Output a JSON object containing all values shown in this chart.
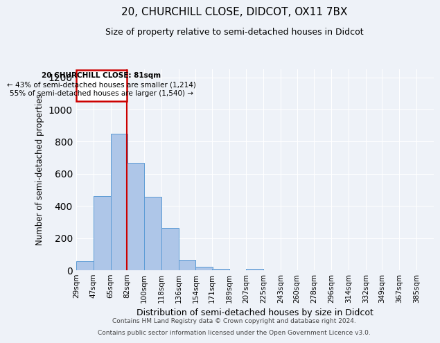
{
  "title1": "20, CHURCHILL CLOSE, DIDCOT, OX11 7BX",
  "title2": "Size of property relative to semi-detached houses in Didcot",
  "xlabel": "Distribution of semi-detached houses by size in Didcot",
  "ylabel": "Number of semi-detached properties",
  "bins": [
    29,
    47,
    65,
    82,
    100,
    118,
    136,
    154,
    171,
    189,
    207,
    225,
    243,
    260,
    278,
    296,
    314,
    332,
    349,
    367,
    385
  ],
  "bin_labels": [
    "29sqm",
    "47sqm",
    "65sqm",
    "82sqm",
    "100sqm",
    "118sqm",
    "136sqm",
    "154sqm",
    "171sqm",
    "189sqm",
    "207sqm",
    "225sqm",
    "243sqm",
    "260sqm",
    "278sqm",
    "296sqm",
    "314sqm",
    "332sqm",
    "349sqm",
    "367sqm",
    "385sqm"
  ],
  "counts": [
    55,
    460,
    850,
    670,
    455,
    265,
    65,
    20,
    10,
    0,
    10,
    0,
    0,
    0,
    0,
    0,
    0,
    0,
    0,
    0,
    0
  ],
  "bar_color": "#aec6e8",
  "bar_edge_color": "#5b9bd5",
  "red_line_bin_index": 3,
  "annotation_text1": "20 CHURCHILL CLOSE: 81sqm",
  "annotation_text2": "← 43% of semi-detached houses are smaller (1,214)",
  "annotation_text3": "55% of semi-detached houses are larger (1,540) →",
  "ylim": [
    0,
    1250
  ],
  "yticks": [
    0,
    200,
    400,
    600,
    800,
    1000,
    1200
  ],
  "footer1": "Contains HM Land Registry data © Crown copyright and database right 2024.",
  "footer2": "Contains public sector information licensed under the Open Government Licence v3.0.",
  "bg_color": "#eef2f8",
  "annotation_box_color": "#ffffff",
  "annotation_box_edge": "#cc0000",
  "red_line_color": "#cc0000",
  "grid_color": "#ffffff"
}
